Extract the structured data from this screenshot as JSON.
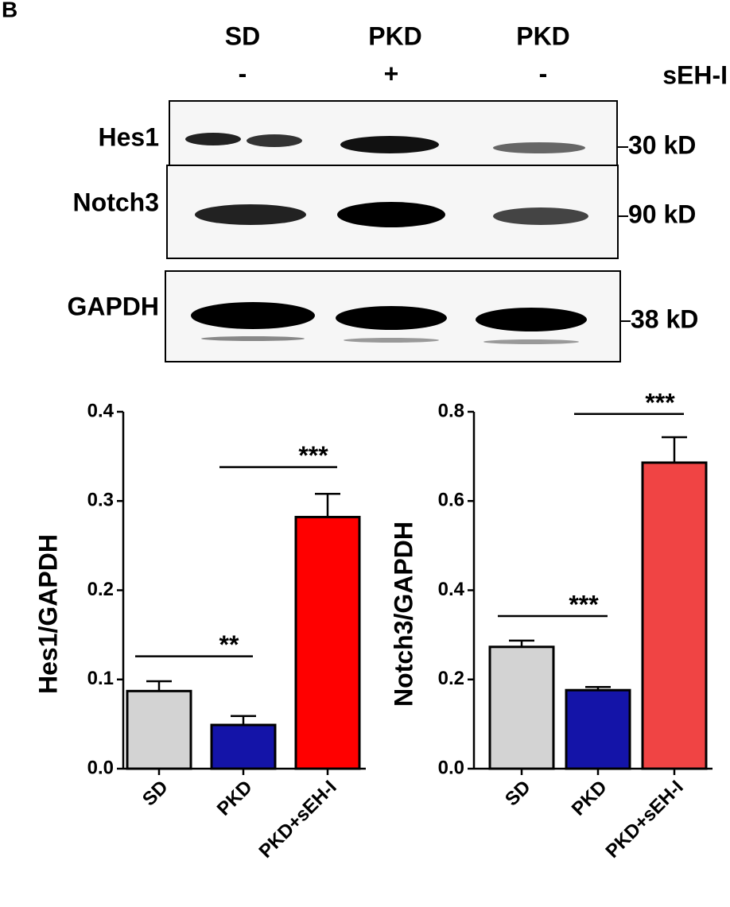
{
  "panel_label": "B",
  "blot": {
    "lanes": [
      "SD",
      "PKD",
      "PKD"
    ],
    "treatment_signs": [
      "-",
      "+",
      "-"
    ],
    "treatment_label": "sEH-I",
    "rows": [
      {
        "label": "Hes1",
        "size": "30 kD"
      },
      {
        "label": "Notch3",
        "size": "90 kD"
      },
      {
        "label": "GAPDH",
        "size": "38 kD"
      }
    ]
  },
  "chart_data": [
    {
      "type": "bar",
      "ylabel": "Hes1/GAPDH",
      "categories": [
        "SD",
        "PKD",
        "PKD+sEH-I"
      ],
      "values": [
        0.087,
        0.049,
        0.282
      ],
      "errors": [
        0.011,
        0.01,
        0.026
      ],
      "colors": [
        "#d3d3d3",
        "#1414a8",
        "#ff0000"
      ],
      "ylim": [
        0,
        0.4
      ],
      "yticks": [
        {
          "value": 0,
          "label": "0.0"
        },
        0.1,
        0.2,
        0.3,
        0.4
      ],
      "annotations": [
        {
          "text": "**",
          "from": "SD",
          "to": "PKD",
          "y": 0.126
        },
        {
          "text": "***",
          "from": "PKD",
          "to": "PKD+sEH-I",
          "y": 0.338
        }
      ]
    },
    {
      "type": "bar",
      "ylabel": "Notch3/GAPDH",
      "categories": [
        "SD",
        "PKD",
        "PKD+sEH-I"
      ],
      "values": [
        0.273,
        0.176,
        0.686
      ],
      "errors": [
        0.014,
        0.007,
        0.057
      ],
      "colors": [
        "#d3d3d3",
        "#1414a8",
        "#f04444"
      ],
      "ylim": [
        0,
        0.8
      ],
      "yticks": [
        {
          "value": 0,
          "label": "0.0"
        },
        0.2,
        0.4,
        0.6,
        0.8
      ],
      "annotations": [
        {
          "text": "***",
          "from": "SD",
          "to": "PKD",
          "y": 0.342
        },
        {
          "text": "***",
          "from": "PKD",
          "to": "PKD+sEH-I",
          "y": 0.795
        }
      ]
    }
  ]
}
